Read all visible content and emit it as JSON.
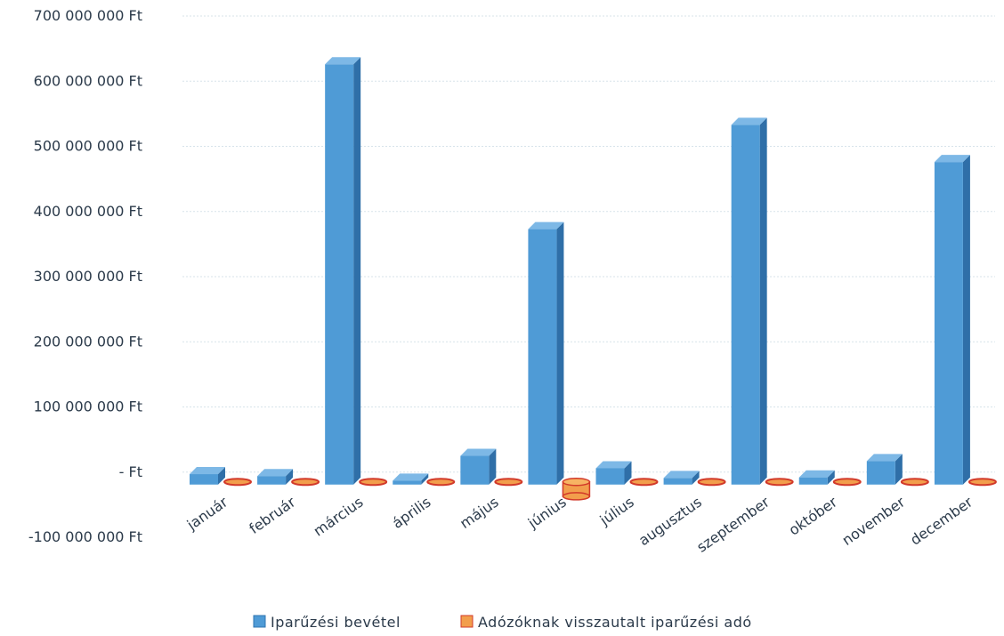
{
  "chart_data": {
    "type": "bar",
    "categories": [
      "január",
      "február",
      "március",
      "április",
      "május",
      "június",
      "július",
      "augusztus",
      "szeptember",
      "október",
      "november",
      "december"
    ],
    "series": [
      {
        "name": "Iparűzési bevétel",
        "color": "#4f9bd6",
        "values": [
          16000000,
          13000000,
          645000000,
          6000000,
          44000000,
          392000000,
          25000000,
          10000000,
          552000000,
          11000000,
          36000000,
          495000000
        ]
      },
      {
        "name": "Adózóknak visszautalt iparűzési adó",
        "color": "#e8423a",
        "values": [
          -500000,
          -500000,
          -500000,
          -500000,
          -500000,
          -18000000,
          -500000,
          -500000,
          -500000,
          -500000,
          -500000,
          -500000
        ]
      }
    ],
    "y_ticks": [
      "700 000 000 Ft",
      "600 000 000 Ft",
      "500 000 000 Ft",
      "400 000 000 Ft",
      "300 000 000 Ft",
      "200 000 000 Ft",
      "100 000 000 Ft",
      "-   Ft",
      "-100 000 000 Ft"
    ],
    "ylim": [
      -100000000,
      700000000
    ],
    "legend_position": "bottom",
    "grid": true
  }
}
